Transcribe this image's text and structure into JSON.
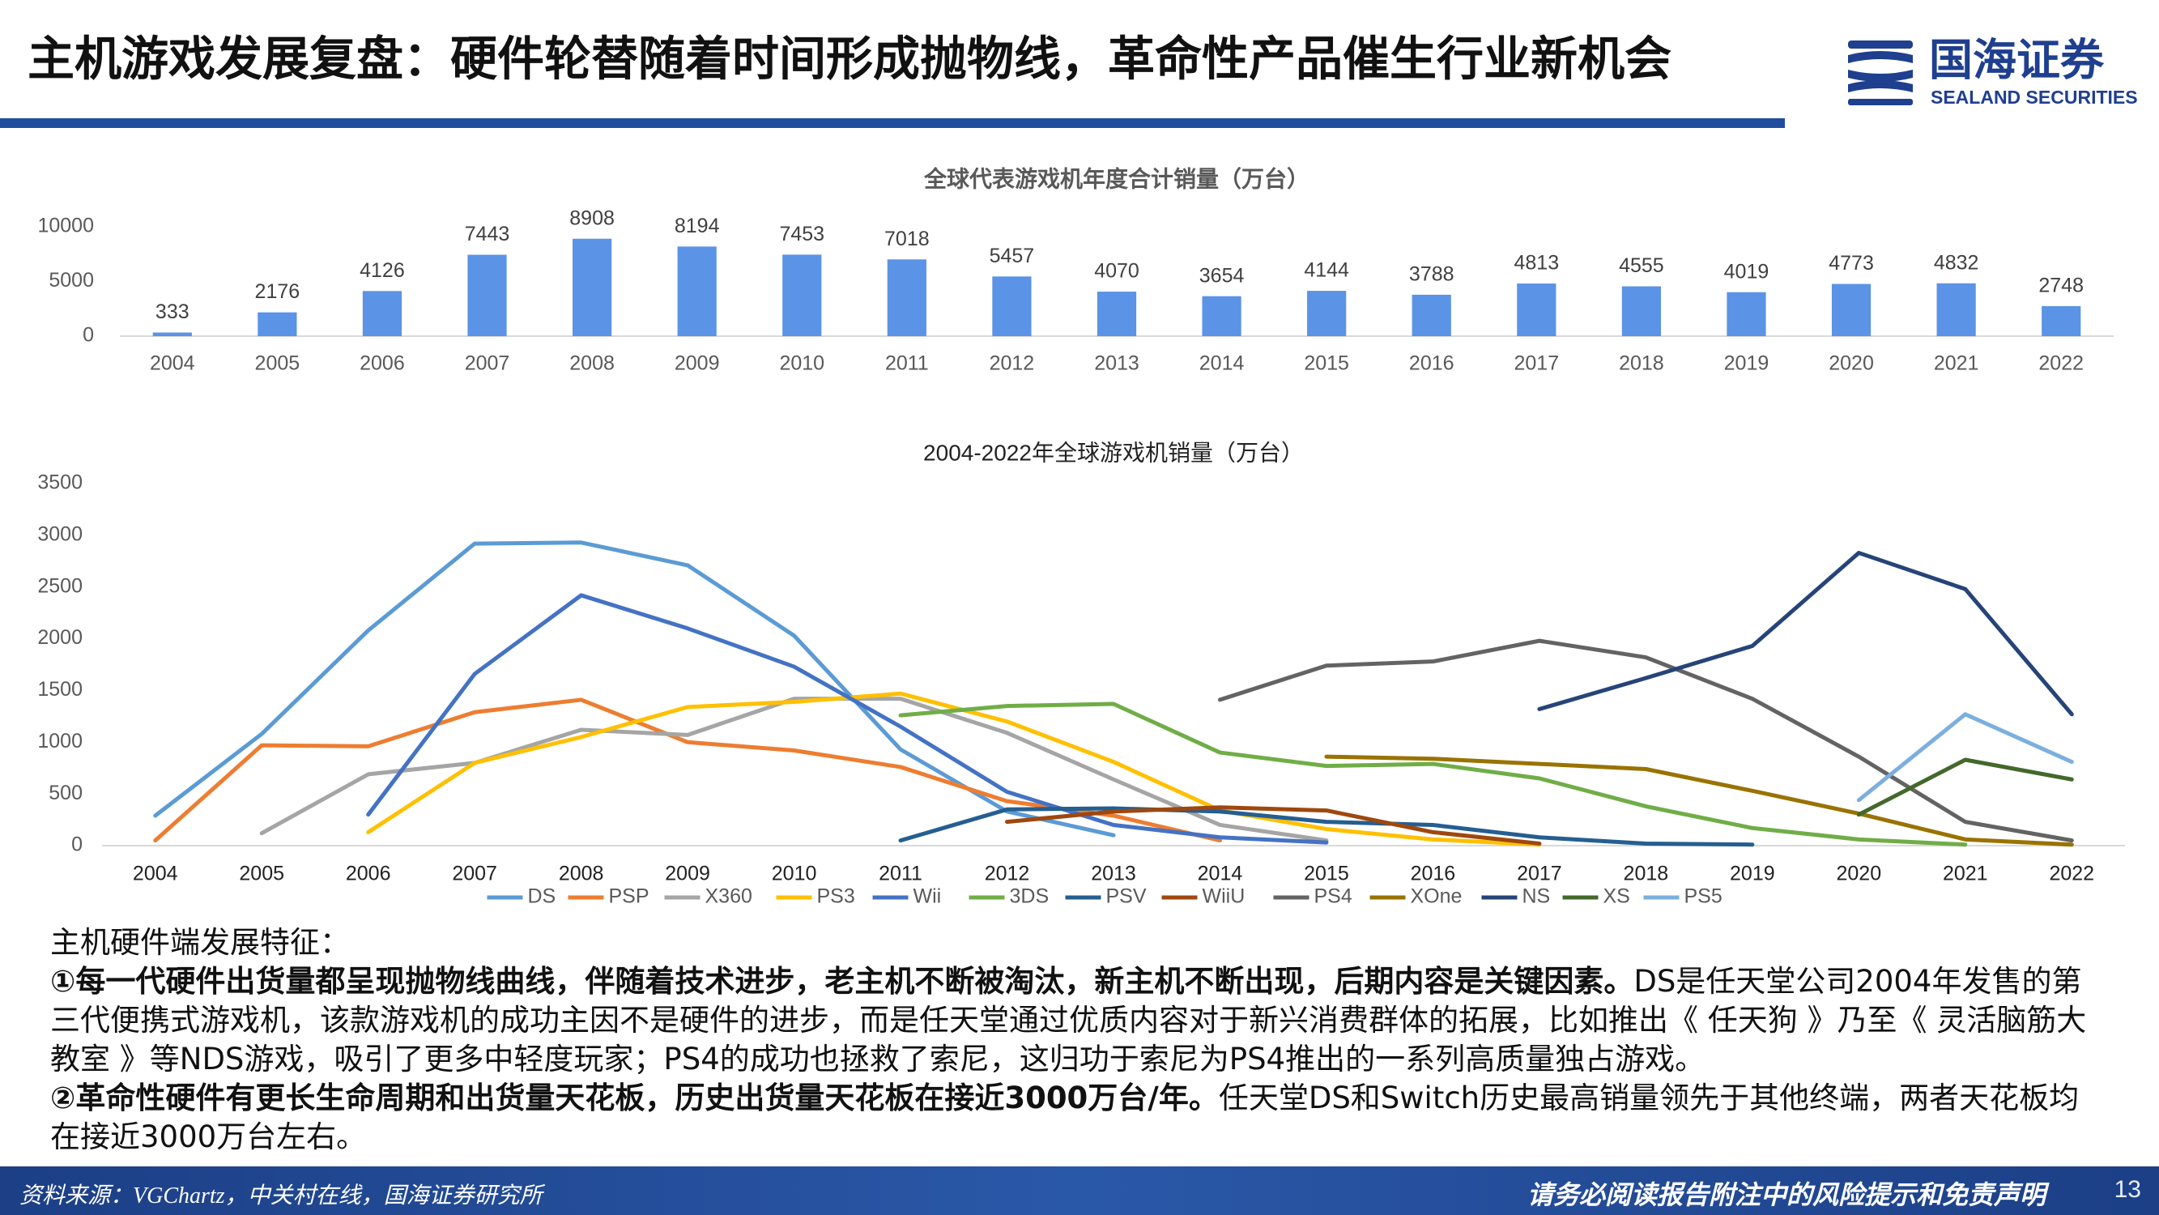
{
  "header": {
    "title": "主机游戏发展复盘：硬件轮替随着时间形成抛物线，革命性产品催生行业新机会",
    "logo_cn": "国海证券",
    "logo_en": "SEALAND SECURITIES"
  },
  "chart_data": [
    {
      "type": "bar",
      "title": "全球代表游戏机年度合计销量（万台）",
      "categories": [
        "2004",
        "2005",
        "2006",
        "2007",
        "2008",
        "2009",
        "2010",
        "2011",
        "2012",
        "2013",
        "2014",
        "2015",
        "2016",
        "2017",
        "2018",
        "2019",
        "2020",
        "2021",
        "2022"
      ],
      "values": [
        333,
        2176,
        4126,
        7443,
        8908,
        8194,
        7453,
        7018,
        5457,
        4070,
        3654,
        4144,
        3788,
        4813,
        4555,
        4019,
        4773,
        4832,
        2748
      ],
      "color": "#5b93e6",
      "ylim": [
        0,
        10000
      ],
      "yticks": [
        0,
        5000,
        10000
      ],
      "grid": false
    },
    {
      "type": "line",
      "title": "2004-2022年全球游戏机销量（万台）",
      "categories": [
        "2004",
        "2005",
        "2006",
        "2007",
        "2008",
        "2009",
        "2010",
        "2011",
        "2012",
        "2013",
        "2014",
        "2015",
        "2016",
        "2017",
        "2018",
        "2019",
        "2020",
        "2021",
        "2022"
      ],
      "ylim": [
        0,
        3500
      ],
      "yticks": [
        0,
        500,
        1000,
        1500,
        2000,
        2500,
        3000,
        3500
      ],
      "grid": false,
      "legend": "bottom",
      "series": [
        {
          "name": "DS",
          "color": "#5b9bd5",
          "values": [
            290,
            1080,
            2080,
            2920,
            2930,
            2710,
            2030,
            930,
            330,
            100,
            null,
            null,
            null,
            null,
            null,
            null,
            null,
            null,
            null
          ]
        },
        {
          "name": "PSP",
          "color": "#ed7d31",
          "values": [
            50,
            970,
            960,
            1290,
            1410,
            1000,
            920,
            760,
            430,
            290,
            50,
            null,
            null,
            null,
            null,
            null,
            null,
            null,
            null
          ]
        },
        {
          "name": "X360",
          "color": "#a5a5a5",
          "values": [
            null,
            120,
            690,
            800,
            1120,
            1070,
            1420,
            1420,
            1090,
            640,
            200,
            50,
            null,
            null,
            null,
            null,
            null,
            null,
            null
          ]
        },
        {
          "name": "PS3",
          "color": "#ffc000",
          "values": [
            null,
            null,
            130,
            800,
            1050,
            1340,
            1390,
            1470,
            1200,
            810,
            340,
            160,
            60,
            10,
            null,
            null,
            null,
            null,
            null
          ]
        },
        {
          "name": "Wii",
          "color": "#4472c4",
          "values": [
            null,
            null,
            300,
            1660,
            2420,
            2100,
            1730,
            1150,
            520,
            200,
            80,
            30,
            null,
            null,
            null,
            null,
            null,
            null,
            null
          ]
        },
        {
          "name": "3DS",
          "color": "#70ad47",
          "values": [
            null,
            null,
            null,
            null,
            null,
            null,
            null,
            1260,
            1350,
            1370,
            900,
            770,
            790,
            650,
            380,
            170,
            60,
            10,
            null
          ]
        },
        {
          "name": "PSV",
          "color": "#255e91",
          "values": [
            null,
            null,
            null,
            null,
            null,
            null,
            null,
            50,
            350,
            360,
            330,
            230,
            200,
            80,
            20,
            10,
            null,
            null,
            null
          ]
        },
        {
          "name": "WiiU",
          "color": "#9e480e",
          "values": [
            null,
            null,
            null,
            null,
            null,
            null,
            null,
            null,
            230,
            330,
            370,
            340,
            130,
            20,
            null,
            null,
            null,
            null,
            null
          ]
        },
        {
          "name": "PS4",
          "color": "#636363",
          "values": [
            null,
            null,
            null,
            null,
            null,
            null,
            null,
            null,
            null,
            null,
            1410,
            1740,
            1780,
            1980,
            1820,
            1420,
            860,
            230,
            50
          ]
        },
        {
          "name": "XOne",
          "color": "#997300",
          "values": [
            null,
            null,
            null,
            null,
            null,
            null,
            null,
            null,
            null,
            null,
            null,
            860,
            840,
            790,
            740,
            530,
            310,
            60,
            10
          ]
        },
        {
          "name": "NS",
          "color": "#264478",
          "values": [
            null,
            null,
            null,
            null,
            null,
            null,
            null,
            null,
            null,
            null,
            null,
            null,
            null,
            1320,
            1620,
            1930,
            2830,
            2480,
            1270
          ]
        },
        {
          "name": "XS",
          "color": "#43682b",
          "values": [
            null,
            null,
            null,
            null,
            null,
            null,
            null,
            null,
            null,
            null,
            null,
            null,
            null,
            null,
            null,
            null,
            300,
            830,
            640
          ]
        },
        {
          "name": "PS5",
          "color": "#7cafdd",
          "values": [
            null,
            null,
            null,
            null,
            null,
            null,
            null,
            null,
            null,
            null,
            null,
            null,
            null,
            null,
            null,
            null,
            440,
            1270,
            810
          ]
        }
      ]
    }
  ],
  "text": {
    "heading": "主机硬件端发展特征：",
    "point1_bold": "①每一代硬件出货量都呈现抛物线曲线，伴随着技术进步，老主机不断被淘汰，新主机不断出现，后期内容是关键因素。",
    "point1_rest": "DS是任天堂公司2004年发售的第三代便携式游戏机，该款游戏机的成功主因不是硬件的进步，而是任天堂通过优质内容对于新兴消费群体的拓展，比如推出《 任天狗 》乃至《 灵活脑筋大教室 》等NDS游戏，吸引了更多中轻度玩家；PS4的成功也拯救了索尼，这归功于索尼为PS4推出的一系列高质量独占游戏。",
    "point2_bold": "②革命性硬件有更长生命周期和出货量天花板，历史出货量天花板在接近3000万台/年。",
    "point2_rest": "任天堂DS和Switch历史最高销量领先于其他终端，两者天花板均在接近3000万台左右。"
  },
  "footer": {
    "source": "资料来源：VGChartz，中关村在线，国海证券研究所",
    "disclaimer": "请务必阅读报告附注中的风险提示和免责声明",
    "page": "13"
  }
}
